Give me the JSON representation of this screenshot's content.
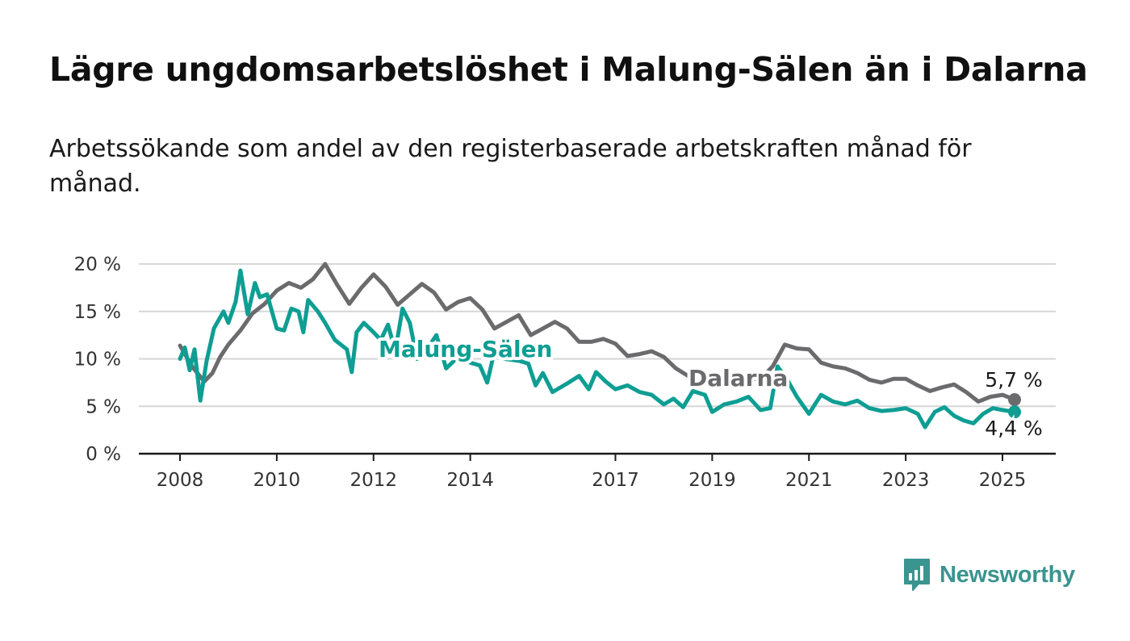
{
  "title": "Lägre ungdomsarbetslöshet i Malung-Sälen än i Dalarna",
  "subtitle": "Arbetssökande som andel av den registerbaserade arbetskraften månad för månad.",
  "brand": {
    "name": "Newsworthy",
    "icon": "bar-chart-speech-bubble-icon",
    "color": "#3a948f"
  },
  "chart_data": {
    "type": "line",
    "title": "Lägre ungdomsarbetslöshet i Malung-Sälen än i Dalarna",
    "xlabel": "",
    "ylabel": "",
    "xlim": [
      2008,
      2025.5
    ],
    "ylim": [
      0,
      20
    ],
    "grid": true,
    "legend": "inline labels",
    "x_ticks": [
      2008,
      2010,
      2012,
      2014,
      2017,
      2019,
      2021,
      2023,
      2025
    ],
    "y_ticks": [
      {
        "value": 0,
        "label": "0 %"
      },
      {
        "value": 5,
        "label": "5 %"
      },
      {
        "value": 10,
        "label": "10 %"
      },
      {
        "value": 15,
        "label": "15 %"
      },
      {
        "value": 20,
        "label": "20 %"
      }
    ],
    "series": [
      {
        "name": "Dalarna",
        "color": "#6b6b6e",
        "end_label": "5,7 %",
        "points": [
          [
            2008.0,
            11.4
          ],
          [
            2008.25,
            9.2
          ],
          [
            2008.5,
            7.6
          ],
          [
            2008.67,
            8.5
          ],
          [
            2008.83,
            10.2
          ],
          [
            2009.0,
            11.5
          ],
          [
            2009.25,
            13.0
          ],
          [
            2009.5,
            14.8
          ],
          [
            2009.75,
            15.8
          ],
          [
            2010.0,
            17.2
          ],
          [
            2010.25,
            18.0
          ],
          [
            2010.5,
            17.5
          ],
          [
            2010.75,
            18.4
          ],
          [
            2011.0,
            20.0
          ],
          [
            2011.25,
            17.8
          ],
          [
            2011.5,
            15.8
          ],
          [
            2011.75,
            17.5
          ],
          [
            2012.0,
            18.9
          ],
          [
            2012.25,
            17.6
          ],
          [
            2012.5,
            15.7
          ],
          [
            2012.75,
            16.8
          ],
          [
            2013.0,
            17.9
          ],
          [
            2013.25,
            17.0
          ],
          [
            2013.5,
            15.2
          ],
          [
            2013.75,
            16.0
          ],
          [
            2014.0,
            16.4
          ],
          [
            2014.25,
            15.2
          ],
          [
            2014.5,
            13.2
          ],
          [
            2014.75,
            13.9
          ],
          [
            2015.0,
            14.6
          ],
          [
            2015.25,
            12.5
          ],
          [
            2015.5,
            13.2
          ],
          [
            2015.75,
            13.9
          ],
          [
            2016.0,
            13.2
          ],
          [
            2016.25,
            11.8
          ],
          [
            2016.5,
            11.8
          ],
          [
            2016.75,
            12.1
          ],
          [
            2017.0,
            11.6
          ],
          [
            2017.25,
            10.3
          ],
          [
            2017.5,
            10.5
          ],
          [
            2017.75,
            10.8
          ],
          [
            2018.0,
            10.2
          ],
          [
            2018.25,
            9.0
          ],
          [
            2018.5,
            8.2
          ],
          [
            2018.75,
            8.5
          ],
          [
            2019.0,
            8.2
          ],
          [
            2019.5,
            7.8
          ],
          [
            2020.0,
            7.9
          ],
          [
            2020.25,
            9.2
          ],
          [
            2020.5,
            11.5
          ],
          [
            2020.75,
            11.1
          ],
          [
            2021.0,
            11.0
          ],
          [
            2021.25,
            9.6
          ],
          [
            2021.5,
            9.2
          ],
          [
            2021.75,
            9.0
          ],
          [
            2022.0,
            8.5
          ],
          [
            2022.25,
            7.8
          ],
          [
            2022.5,
            7.5
          ],
          [
            2022.75,
            7.9
          ],
          [
            2023.0,
            7.9
          ],
          [
            2023.25,
            7.2
          ],
          [
            2023.5,
            6.6
          ],
          [
            2023.75,
            7.0
          ],
          [
            2024.0,
            7.3
          ],
          [
            2024.25,
            6.5
          ],
          [
            2024.5,
            5.5
          ],
          [
            2024.75,
            6.0
          ],
          [
            2025.0,
            6.2
          ],
          [
            2025.25,
            5.7
          ]
        ]
      },
      {
        "name": "Malung-Sälen",
        "color": "#0e9e93",
        "end_label": "4,4 %",
        "points": [
          [
            2008.0,
            10.0
          ],
          [
            2008.1,
            11.2
          ],
          [
            2008.2,
            8.8
          ],
          [
            2008.3,
            11.0
          ],
          [
            2008.42,
            5.6
          ],
          [
            2008.55,
            9.8
          ],
          [
            2008.7,
            13.2
          ],
          [
            2008.9,
            15.0
          ],
          [
            2009.0,
            13.8
          ],
          [
            2009.15,
            16.0
          ],
          [
            2009.25,
            19.3
          ],
          [
            2009.4,
            14.7
          ],
          [
            2009.55,
            18.0
          ],
          [
            2009.65,
            16.5
          ],
          [
            2009.8,
            16.8
          ],
          [
            2010.0,
            13.2
          ],
          [
            2010.15,
            13.0
          ],
          [
            2010.3,
            15.3
          ],
          [
            2010.45,
            15.0
          ],
          [
            2010.55,
            12.8
          ],
          [
            2010.65,
            16.2
          ],
          [
            2010.85,
            15.0
          ],
          [
            2011.0,
            13.8
          ],
          [
            2011.2,
            12.0
          ],
          [
            2011.45,
            11.0
          ],
          [
            2011.55,
            8.6
          ],
          [
            2011.65,
            12.8
          ],
          [
            2011.8,
            13.8
          ],
          [
            2012.0,
            12.8
          ],
          [
            2012.15,
            12.0
          ],
          [
            2012.3,
            13.6
          ],
          [
            2012.45,
            10.8
          ],
          [
            2012.6,
            15.3
          ],
          [
            2012.75,
            13.8
          ],
          [
            2012.9,
            10.0
          ],
          [
            2013.1,
            11.0
          ],
          [
            2013.3,
            12.5
          ],
          [
            2013.5,
            9.0
          ],
          [
            2013.75,
            10.2
          ],
          [
            2014.0,
            9.6
          ],
          [
            2014.2,
            9.3
          ],
          [
            2014.35,
            7.5
          ],
          [
            2014.5,
            10.8
          ],
          [
            2014.7,
            10.0
          ],
          [
            2015.0,
            9.8
          ],
          [
            2015.2,
            9.5
          ],
          [
            2015.35,
            7.2
          ],
          [
            2015.5,
            8.5
          ],
          [
            2015.7,
            6.5
          ],
          [
            2016.0,
            7.4
          ],
          [
            2016.25,
            8.2
          ],
          [
            2016.45,
            6.8
          ],
          [
            2016.6,
            8.6
          ],
          [
            2016.8,
            7.6
          ],
          [
            2017.0,
            6.8
          ],
          [
            2017.25,
            7.2
          ],
          [
            2017.5,
            6.5
          ],
          [
            2017.75,
            6.2
          ],
          [
            2018.0,
            5.2
          ],
          [
            2018.2,
            5.8
          ],
          [
            2018.4,
            4.9
          ],
          [
            2018.6,
            6.6
          ],
          [
            2018.85,
            6.2
          ],
          [
            2019.0,
            4.4
          ],
          [
            2019.25,
            5.2
          ],
          [
            2019.5,
            5.5
          ],
          [
            2019.75,
            6.0
          ],
          [
            2020.0,
            4.6
          ],
          [
            2020.2,
            4.8
          ],
          [
            2020.35,
            9.2
          ],
          [
            2020.55,
            7.8
          ],
          [
            2020.75,
            6.0
          ],
          [
            2021.0,
            4.2
          ],
          [
            2021.25,
            6.2
          ],
          [
            2021.5,
            5.5
          ],
          [
            2021.75,
            5.2
          ],
          [
            2022.0,
            5.6
          ],
          [
            2022.25,
            4.8
          ],
          [
            2022.5,
            4.5
          ],
          [
            2022.75,
            4.6
          ],
          [
            2023.0,
            4.8
          ],
          [
            2023.25,
            4.2
          ],
          [
            2023.4,
            2.8
          ],
          [
            2023.6,
            4.4
          ],
          [
            2023.8,
            4.9
          ],
          [
            2024.0,
            4.0
          ],
          [
            2024.2,
            3.5
          ],
          [
            2024.4,
            3.2
          ],
          [
            2024.6,
            4.2
          ],
          [
            2024.8,
            4.8
          ],
          [
            2025.0,
            4.6
          ],
          [
            2025.25,
            4.4
          ]
        ]
      }
    ]
  }
}
